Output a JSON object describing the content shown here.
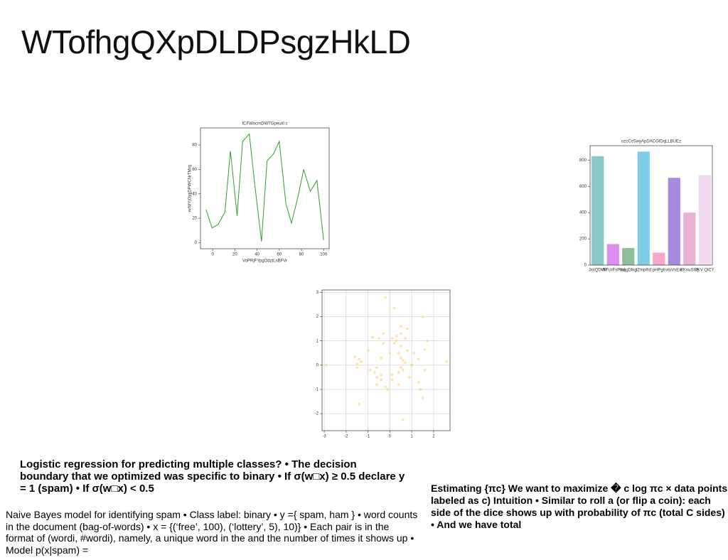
{
  "title": "WTofhgQXpDLDPsgzHkLD",
  "chart_data": [
    {
      "type": "line",
      "title": "fCFWncmDWTGpeukl c",
      "xlabel": "VoPRjFYpgOdztLsBFVr",
      "ylabel": "nrNtYjOjqjDPWCNrTMrq",
      "x": [
        -6,
        -0.5,
        5,
        11,
        16,
        22,
        27,
        33,
        38,
        44,
        49,
        55,
        60,
        66,
        71,
        77,
        82,
        88,
        94,
        100
      ],
      "series": [
        {
          "name": "line",
          "color": "#2ca02c",
          "values": [
            27,
            12,
            15,
            25,
            75,
            22,
            83,
            89,
            47,
            1,
            67,
            73,
            83,
            32,
            16,
            38,
            60,
            42,
            51,
            2
          ]
        }
      ],
      "xlim": [
        -11,
        105
      ],
      "xticks": [
        0,
        20,
        40,
        60,
        80,
        100
      ],
      "ylim": [
        -5,
        94
      ],
      "yticks": [
        0,
        20,
        40,
        60,
        80
      ]
    },
    {
      "type": "bar",
      "title": "uzcCcSwyApDACGfDqLLBUEz",
      "categories": [
        "JxcQDvM",
        "WYUrFsPnd",
        "tbqgDlkg",
        "tZmpRd",
        "pHPgti",
        "vtuVsExr",
        "EKnuSIPj",
        "JKV QiCY"
      ],
      "values": [
        830,
        160,
        130,
        865,
        95,
        665,
        400,
        685
      ],
      "colors": [
        "#8dc7c9",
        "#d98ef0",
        "#8fbf98",
        "#7fcde6",
        "#f7a8c8",
        "#a58ce0",
        "#e6b3d6",
        "#f2d9f2"
      ],
      "ylim": [
        0,
        910
      ],
      "yticks": [
        0,
        200,
        400,
        600,
        800
      ]
    },
    {
      "type": "scatter",
      "color": "#ffd27f",
      "grid": true,
      "x": [
        -2.9,
        -1.6,
        -1.5,
        -1.5,
        -1.4,
        -1.4,
        -1.3,
        -1,
        -0.8,
        -0.7,
        -0.6,
        -0.6,
        -0.6,
        -0.5,
        -0.4,
        -0.4,
        -0.3,
        -0.3,
        -0.4,
        -0.2,
        -0.2,
        -0.1,
        0,
        0.1,
        0.1,
        0.1,
        0.2,
        0.2,
        0.3,
        0.3,
        0.4,
        0.4,
        0.4,
        0.5,
        0.5,
        0.5,
        0.5,
        0.6,
        0.6,
        0.7,
        0.7,
        0.8,
        0.8,
        0.6,
        1,
        1.1,
        1.3,
        1.3,
        1.4,
        1.5,
        1.5,
        1.6,
        1.6,
        1.7,
        2.6,
        0.5,
        -0.9,
        0.9
      ],
      "values": [
        0,
        0.35,
        -0.1,
        0.05,
        0.25,
        -1.6,
        0.15,
        0.6,
        1.15,
        -0.3,
        -0.1,
        -0.5,
        -0.8,
        1.1,
        -0.4,
        -0.6,
        1.3,
        0.9,
        0.3,
        2.8,
        -0.9,
        -1,
        0.5,
        1.1,
        -0.6,
        -0.4,
        2.35,
        0.9,
        1.2,
        1,
        0.5,
        -0.3,
        -0.8,
        1.6,
        1.3,
        0.3,
        -0.1,
        0.2,
        -0.2,
        1.1,
        0.1,
        1.5,
        0.6,
        -2.25,
        0,
        0.5,
        0.25,
        -0.7,
        -1,
        2,
        -1.35,
        0.65,
        -0.2,
        1,
        0.15,
        0.8,
        -0.2,
        -0.5
      ],
      "xlim": [
        -3.1,
        2.75
      ],
      "xticks": [
        -3,
        -2,
        -1,
        0,
        1,
        2
      ],
      "ylim": [
        -2.7,
        3.1
      ],
      "yticks": [
        -2,
        -1,
        0,
        1,
        2,
        3
      ]
    }
  ],
  "text_blocks": [
    "Logistic regression for predicting multiple classes? • The decision boundary that we optimized was specific to binary • If σ(w□x) ≥ 0.5 declare y = 1 (spam) • If σ(w□x) < 0.5",
    "Naive Bayes model for identifying spam • Class label: binary • y ={ spam, ham } • word counts in the document (bag-of-words) • x = {(‘free’, 100), (‘lottery’, 5), 10)} • Each pair is in the format of (wordi, #wordi), namely, a unique word in the and the number of times it shows up • Model p(x|spam) =",
    "Estimating {πc} We want to maximize � c log πc × data points labeled as c) Intuition • Similar to roll a (or flip a coin): each side of the dice shows up with probability of πc (total C sides) • And we have total"
  ]
}
